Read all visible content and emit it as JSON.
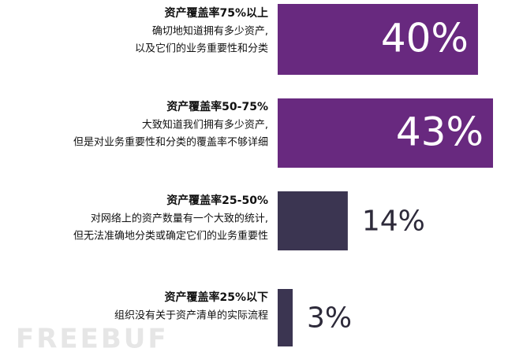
{
  "chart_data": {
    "type": "bar",
    "categories": [
      "资产覆盖率75%以上",
      "资产覆盖率50-75%",
      "资产覆盖率25-50%",
      "资产覆盖率25%以下"
    ],
    "descriptions": [
      [
        "确切地知道拥有多少资产,",
        "以及它们的业务重要性和分类"
      ],
      [
        "大致知道我们拥有多少资产,",
        "但是对业务重要性和分类的覆盖率不够详细"
      ],
      [
        "对网络上的资产数量有一个大致的统计,",
        "但无法准确地分类或确定它们的业务重要性"
      ],
      [
        "组织没有关于资产清单的实际流程"
      ]
    ],
    "values": [
      40,
      43,
      14,
      3
    ],
    "value_labels": [
      "40%",
      "43%",
      "14%",
      "3%"
    ],
    "colors": [
      "#68297f",
      "#68297f",
      "#3b3551",
      "#3b3551"
    ],
    "watermark": "FREEBUF"
  }
}
